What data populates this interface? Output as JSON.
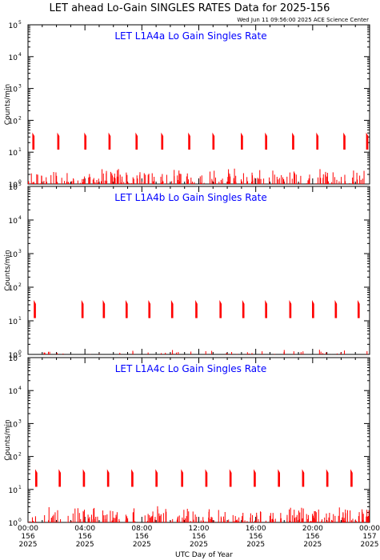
{
  "title": "LET ahead Lo-Gain SINGLES RATES Data for 2025-156",
  "timestamp": "Wed Jun 11 09:56:00 2025 ACE Science Center",
  "xlabel": "UTC Day of Year",
  "colors": {
    "data": "#ff0000",
    "panel_title": "#0000ff",
    "axis": "#000000"
  },
  "chart_data": [
    {
      "type": "line",
      "panel_title": "LET L1A4a Lo Gain Singles Rate",
      "ylabel": "Counts/min",
      "yscale": "log",
      "ylim": [
        1,
        100000
      ],
      "xlim": [
        0,
        24
      ],
      "x_units": "hours UTC, day 156 2025",
      "spike_times": [
        0.35,
        2.1,
        4.0,
        5.7,
        7.6,
        9.4,
        11.3,
        13.0,
        15.0,
        16.7,
        18.6,
        20.3,
        22.2,
        23.8
      ],
      "spike_peak": 35,
      "spike_floor": 12,
      "background": "1-3 counts/min, dense"
    },
    {
      "type": "line",
      "panel_title": "LET L1A4b Lo Gain Singles Rate",
      "ylabel": "Counts/min",
      "yscale": "log",
      "ylim": [
        1,
        100000
      ],
      "xlim": [
        0,
        24
      ],
      "x_units": "hours UTC, day 156 2025",
      "spike_times": [
        0.45,
        3.8,
        5.3,
        6.9,
        8.5,
        10.1,
        11.8,
        13.5,
        15.1,
        16.7,
        18.4,
        20.0,
        21.6,
        23.2
      ],
      "spike_peak": 35,
      "spike_floor": 12,
      "background": "~1 count/min, sparse"
    },
    {
      "type": "line",
      "panel_title": "LET L1A4c Lo Gain Singles Rate",
      "ylabel": "Counts/min",
      "yscale": "log",
      "ylim": [
        1,
        100000
      ],
      "xlim": [
        0,
        24
      ],
      "x_units": "hours UTC, day 156 2025",
      "spike_times": [
        0.55,
        2.2,
        3.9,
        5.6,
        7.3,
        9.0,
        10.8,
        12.5,
        14.2,
        15.9,
        17.6,
        19.3,
        21.0,
        22.7
      ],
      "spike_peak": 35,
      "spike_floor": 12,
      "background": "1-3 counts/min, dense"
    }
  ],
  "xticks": [
    {
      "x": 0,
      "time": "00:00",
      "doy": "156",
      "year": "2025"
    },
    {
      "x": 4,
      "time": "04:00",
      "doy": "156",
      "year": "2025"
    },
    {
      "x": 8,
      "time": "08:00",
      "doy": "156",
      "year": "2025"
    },
    {
      "x": 12,
      "time": "12:00",
      "doy": "156",
      "year": "2025"
    },
    {
      "x": 16,
      "time": "16:00",
      "doy": "156",
      "year": "2025"
    },
    {
      "x": 20,
      "time": "20:00",
      "doy": "156",
      "year": "2025"
    },
    {
      "x": 24,
      "time": "00:00",
      "doy": "157",
      "year": "2025"
    }
  ],
  "ytick_base": "10",
  "ytick_exponents": [
    "0",
    "1",
    "2",
    "3",
    "4",
    "5"
  ]
}
